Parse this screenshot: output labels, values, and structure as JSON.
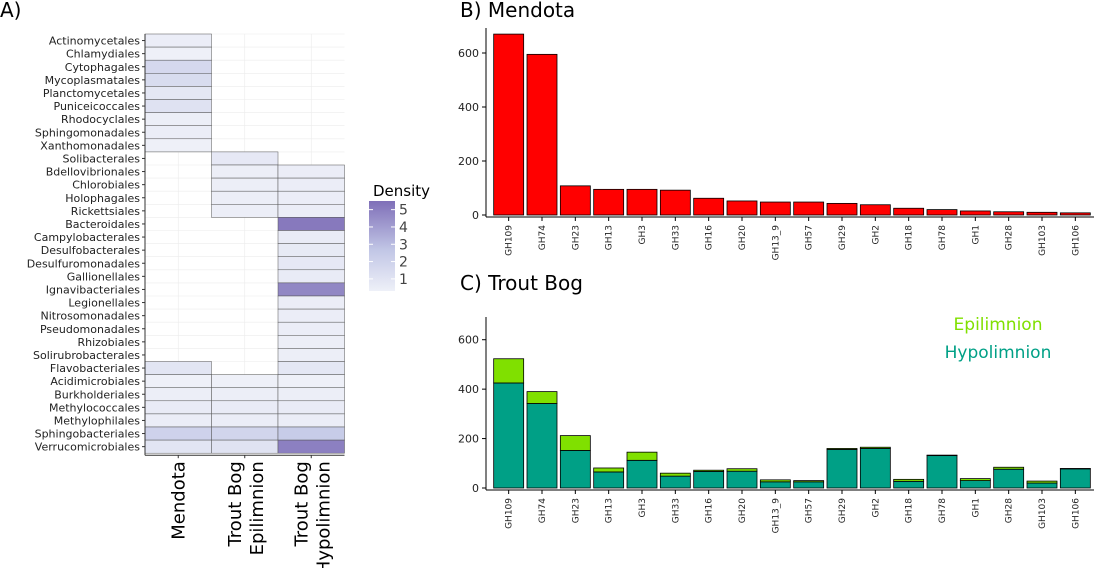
{
  "chart_data": [
    {
      "panel": "A)",
      "type": "heatmap",
      "rows": [
        "Actinomycetales",
        "Chlamydiales",
        "Cytophagales",
        "Mycoplasmatales",
        "Planctomycetales",
        "Puniceicoccales",
        "Rhodocyclales",
        "Sphingomonadales",
        "Xanthomonadales",
        "Solibacterales",
        "Bdellovibrionales",
        "Chlorobiales",
        "Holophagales",
        "Rickettsiales",
        "Bacteroidales",
        "Campylobacterales",
        "Desulfobacterales",
        "Desulfuromonadales",
        "Gallionellales",
        "Ignavibacteriales",
        "Legionellales",
        "Nitrosomonadales",
        "Pseudomonadales",
        "Rhizobiales",
        "Solirubrobacterales",
        "Flavobacteriales",
        "Acidimicrobiales",
        "Burkholderiales",
        "Methylococcales",
        "Methylophilales",
        "Sphingobacteriales",
        "Verrucomicrobiales"
      ],
      "columns": [
        "Mendota",
        "Trout Bog\nEpilimnion",
        "Trout Bog\nHypolimnion"
      ],
      "values": [
        [
          0.5,
          null,
          null
        ],
        [
          0.3,
          null,
          null
        ],
        [
          1.8,
          null,
          null
        ],
        [
          1.6,
          null,
          null
        ],
        [
          0.9,
          null,
          null
        ],
        [
          1.2,
          null,
          null
        ],
        [
          0.4,
          null,
          null
        ],
        [
          0.5,
          null,
          null
        ],
        [
          0.3,
          null,
          null
        ],
        [
          null,
          0.8,
          null
        ],
        [
          null,
          0.4,
          0.5
        ],
        [
          null,
          0.4,
          0.5
        ],
        [
          null,
          0.4,
          0.5
        ],
        [
          null,
          0.4,
          0.5
        ],
        [
          null,
          null,
          5.2
        ],
        [
          null,
          null,
          0.6
        ],
        [
          null,
          null,
          0.7
        ],
        [
          null,
          null,
          0.8
        ],
        [
          null,
          null,
          0.6
        ],
        [
          null,
          null,
          4.8
        ],
        [
          null,
          null,
          0.5
        ],
        [
          null,
          null,
          0.5
        ],
        [
          null,
          null,
          0.5
        ],
        [
          null,
          null,
          0.4
        ],
        [
          null,
          null,
          0.4
        ],
        [
          1.0,
          null,
          0.9
        ],
        [
          0.3,
          0.3,
          0.3
        ],
        [
          0.4,
          0.4,
          0.4
        ],
        [
          0.6,
          0.6,
          0.6
        ],
        [
          0.5,
          0.5,
          0.5
        ],
        [
          2.2,
          2.0,
          2.6
        ],
        [
          1.0,
          1.1,
          5.0
        ]
      ],
      "legend": {
        "title": "Density",
        "ticks": [
          1,
          2,
          3,
          4,
          5
        ],
        "range": [
          0.3,
          5.5
        ],
        "colors": [
          "#eef0f8",
          "#c2c7e6",
          "#7f6fb8"
        ]
      }
    },
    {
      "panel": "B) Mendota",
      "type": "bar",
      "categories": [
        "GH109",
        "GH74",
        "GH23",
        "GH13",
        "GH3",
        "GH33",
        "GH16",
        "GH20",
        "GH13_9",
        "GH57",
        "GH29",
        "GH2",
        "GH18",
        "GH78",
        "GH1",
        "GH28",
        "GH103",
        "GH106"
      ],
      "values": [
        670,
        595,
        108,
        95,
        95,
        92,
        62,
        52,
        48,
        48,
        43,
        38,
        25,
        20,
        15,
        12,
        10,
        8
      ],
      "ylim": [
        0,
        700
      ],
      "yticks": [
        0,
        200,
        400,
        600
      ],
      "color": "#ff0000"
    },
    {
      "panel": "C) Trout Bog",
      "type": "bar",
      "stacked": true,
      "categories": [
        "GH109",
        "GH74",
        "GH23",
        "GH13",
        "GH3",
        "GH33",
        "GH16",
        "GH20",
        "GH13_9",
        "GH57",
        "GH29",
        "GH2",
        "GH18",
        "GH78",
        "GH1",
        "GH28",
        "GH103",
        "GH106"
      ],
      "series": [
        {
          "name": "Hypolimnion",
          "color": "#00a086",
          "values": [
            425,
            342,
            152,
            65,
            112,
            48,
            67,
            68,
            25,
            25,
            156,
            160,
            27,
            132,
            30,
            76,
            20,
            78
          ]
        },
        {
          "name": "Epilimnion",
          "color": "#80e000",
          "values": [
            98,
            48,
            60,
            16,
            33,
            12,
            5,
            10,
            8,
            5,
            4,
            5,
            8,
            1,
            8,
            8,
            8,
            1
          ]
        }
      ],
      "ylim": [
        0,
        700
      ],
      "yticks": [
        0,
        200,
        400,
        600
      ]
    }
  ]
}
